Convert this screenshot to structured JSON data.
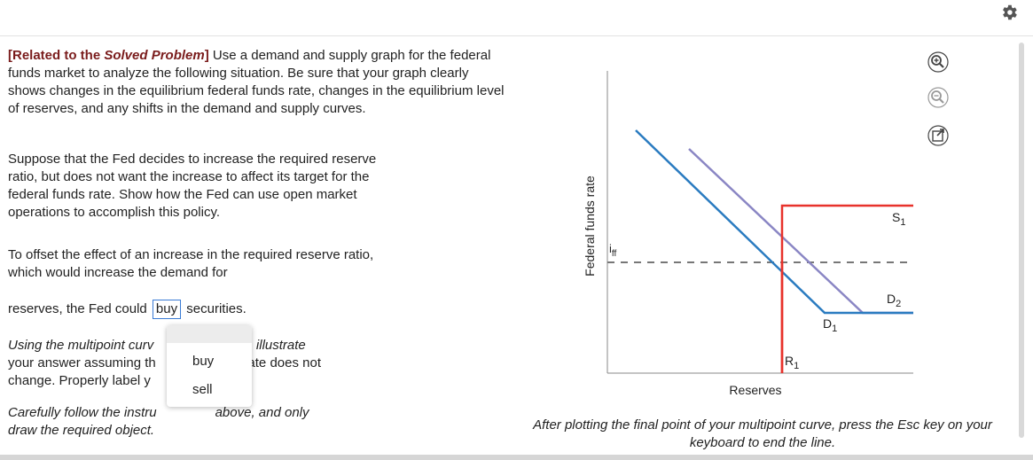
{
  "toolbar": {
    "settings_icon": "gear-icon"
  },
  "question": {
    "related_label": "[Related to the ",
    "related_italic": "Solved Problem",
    "related_close": "]",
    "intro": " Use a demand and supply graph for the federal funds market to analyze the following situation. Be sure that your graph clearly shows changes in the equilibrium federal funds rate, changes in the equilibrium level of reserves, and any shifts in the demand and supply curves.",
    "scenario": "Suppose that the Fed decides to increase the required reserve ratio, but does not want the increase to affect its target for the federal funds rate. Show how the Fed can use open market operations to accomplish this policy.",
    "offset_text": "To offset the effect of an increase in the required reserve ratio, which would increase the demand for",
    "reserves_prefix": "reserves, the Fed could",
    "selected_option": "buy",
    "reserves_suffix": "securities.",
    "multipoint_line1_a": "Using the multipoint curv",
    "multipoint_line1_b": "l, illustrate",
    "multipoint_line2_a": "your answer assuming th",
    "multipoint_line2_b": "nt rate does not",
    "multipoint_line3": "change. Properly label y",
    "follow_a": "Carefully follow the instru",
    "follow_b": "above, and only",
    "follow_line2": "draw the required object."
  },
  "dropdown": {
    "options": [
      "buy",
      "sell"
    ]
  },
  "graph": {
    "y_axis_label": "Federal funds rate",
    "x_axis_label": "Reserves",
    "rate_label_main": "i",
    "rate_label_sub": "ff",
    "supply_label_main": "S",
    "supply_label_sub": "1",
    "demand1_label_main": "D",
    "demand1_label_sub": "1",
    "demand2_label_main": "D",
    "demand2_label_sub": "2",
    "reserves_label_main": "R",
    "reserves_label_sub": "1",
    "colors": {
      "supply": "#e8322b",
      "demand1": "#2a7bc0",
      "demand2": "#8a86c4",
      "rate_line": "#777777"
    }
  },
  "tools": {
    "zoom_in": "zoom-in-icon",
    "zoom_out": "zoom-out-icon",
    "expand": "expand-icon"
  },
  "caption": "After plotting the final point of your multipoint curve, press the Esc key on your keyboard to end the line."
}
